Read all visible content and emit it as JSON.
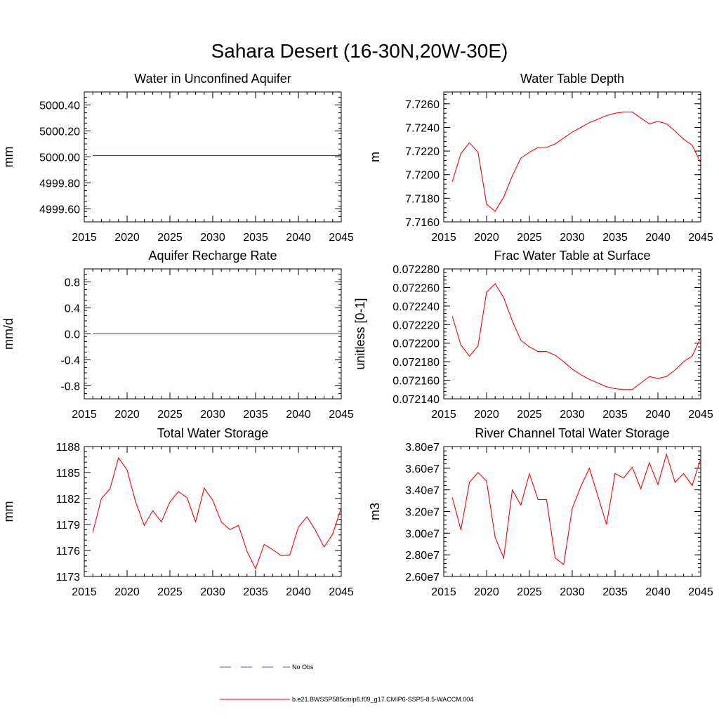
{
  "figure": {
    "title": "Sahara Desert (16-30N,20W-30E)"
  },
  "legend": [
    {
      "label": "No Obs",
      "color": "#4b5ec8",
      "style": "dashed"
    },
    {
      "label": "b.e21.BWSSP585cmip6.f09_g17.CMIP6-SSP5-8.5-WACCM.004",
      "color": "#ff0000",
      "style": "solid"
    }
  ],
  "chart_data": [
    {
      "type": "line",
      "title": "Water in Unconfined Aquifer",
      "ylabel": "mm",
      "xlim": [
        2015,
        2045
      ],
      "ylim": [
        4999.5,
        5000.5
      ],
      "xticks": [
        2015,
        2020,
        2025,
        2030,
        2035,
        2040,
        2045
      ],
      "yticks": [
        4999.6,
        4999.8,
        5000.0,
        5000.2,
        5000.4
      ],
      "ytick_labels": [
        "4999.60",
        "4999.80",
        "5000.00",
        "5000.20",
        "5000.40"
      ],
      "yminor": 0.04,
      "series": [
        {
          "color": "#ff0000",
          "x": [
            2016,
            2045
          ],
          "y": [
            5000.01,
            5000.01
          ]
        }
      ]
    },
    {
      "type": "line",
      "title": "Water Table Depth",
      "ylabel": "m",
      "xlim": [
        2015,
        2045
      ],
      "ylim": [
        7.716,
        7.727
      ],
      "xticks": [
        2015,
        2020,
        2025,
        2030,
        2035,
        2040,
        2045
      ],
      "yticks": [
        7.716,
        7.718,
        7.72,
        7.722,
        7.724,
        7.726
      ],
      "ytick_labels": [
        "7.7160",
        "7.7180",
        "7.7200",
        "7.7220",
        "7.7240",
        "7.7260"
      ],
      "yminor": 0.0004,
      "series": [
        {
          "color": "#ff0000",
          "x": [
            2016,
            2017,
            2018,
            2019,
            2020,
            2021,
            2022,
            2023,
            2024,
            2025,
            2026,
            2027,
            2028,
            2029,
            2030,
            2031,
            2032,
            2033,
            2034,
            2035,
            2036,
            2037,
            2038,
            2039,
            2040,
            2041,
            2042,
            2043,
            2044,
            2045
          ],
          "y": [
            7.7194,
            7.7218,
            7.7227,
            7.7219,
            7.7175,
            7.7169,
            7.7181,
            7.7199,
            7.7214,
            7.7219,
            7.7223,
            7.7223,
            7.7226,
            7.7231,
            7.7236,
            7.724,
            7.7244,
            7.7247,
            7.725,
            7.7252,
            7.7253,
            7.7253,
            7.7248,
            7.7243,
            7.7245,
            7.7243,
            7.7237,
            7.723,
            7.7225,
            7.721
          ]
        }
      ]
    },
    {
      "type": "line",
      "title": "Aquifer Recharge Rate",
      "ylabel": "mm/d",
      "xlim": [
        2015,
        2045
      ],
      "ylim": [
        -1.0,
        1.0
      ],
      "xticks": [
        2015,
        2020,
        2025,
        2030,
        2035,
        2040,
        2045
      ],
      "yticks": [
        -0.8,
        -0.4,
        0.0,
        0.4,
        0.8
      ],
      "ytick_labels": [
        "-0.8",
        "-0.4",
        "0.0",
        "0.4",
        "0.8"
      ],
      "yminor": 0.08,
      "series": [
        {
          "color": "#ff0000",
          "x": [
            2016,
            2045
          ],
          "y": [
            0.0,
            0.0
          ]
        }
      ]
    },
    {
      "type": "line",
      "title": "Frac Water Table at Surface",
      "ylabel": "unitless [0-1]",
      "xlim": [
        2015,
        2045
      ],
      "ylim": [
        0.07214,
        0.07228
      ],
      "xticks": [
        2015,
        2020,
        2025,
        2030,
        2035,
        2040,
        2045
      ],
      "yticks": [
        0.07214,
        0.07216,
        0.07218,
        0.0722,
        0.07222,
        0.07224,
        0.07226,
        0.07228
      ],
      "ytick_labels": [
        "0.072140",
        "0.072160",
        "0.072180",
        "0.072200",
        "0.072220",
        "0.072240",
        "0.072260",
        "0.072280"
      ],
      "yminor": 4e-06,
      "series": [
        {
          "color": "#ff0000",
          "x": [
            2016,
            2017,
            2018,
            2019,
            2020,
            2021,
            2022,
            2023,
            2024,
            2025,
            2026,
            2027,
            2028,
            2029,
            2030,
            2031,
            2032,
            2033,
            2034,
            2035,
            2036,
            2037,
            2038,
            2039,
            2040,
            2041,
            2042,
            2043,
            2044,
            2045
          ],
          "y": [
            0.072229,
            0.072198,
            0.072186,
            0.072197,
            0.072255,
            0.072264,
            0.072249,
            0.072224,
            0.072203,
            0.072196,
            0.072191,
            0.072191,
            0.072187,
            0.07218,
            0.072172,
            0.072166,
            0.072161,
            0.072157,
            0.072153,
            0.072151,
            0.07215,
            0.07215,
            0.072157,
            0.072164,
            0.072162,
            0.072164,
            0.072171,
            0.07218,
            0.072186,
            0.072206
          ]
        }
      ]
    },
    {
      "type": "line",
      "title": "Total Water Storage",
      "ylabel": "mm",
      "xlim": [
        2015,
        2045
      ],
      "ylim": [
        1173,
        1188
      ],
      "xticks": [
        2015,
        2020,
        2025,
        2030,
        2035,
        2040,
        2045
      ],
      "yticks": [
        1173,
        1176,
        1179,
        1182,
        1185,
        1188
      ],
      "ytick_labels": [
        "1173",
        "1176",
        "1179",
        "1182",
        "1185",
        "1188"
      ],
      "yminor": 0.6,
      "series": [
        {
          "color": "#ff0000",
          "x": [
            2016,
            2017,
            2018,
            2019,
            2020,
            2021,
            2022,
            2023,
            2024,
            2025,
            2026,
            2027,
            2028,
            2029,
            2030,
            2031,
            2032,
            2033,
            2034,
            2035,
            2036,
            2037,
            2038,
            2039,
            2040,
            2041,
            2042,
            2043,
            2044,
            2045
          ],
          "y": [
            1178.1,
            1182.0,
            1183.1,
            1186.7,
            1185.3,
            1181.6,
            1178.9,
            1180.6,
            1179.3,
            1181.6,
            1182.8,
            1182.1,
            1179.3,
            1183.2,
            1181.8,
            1179.3,
            1178.4,
            1178.9,
            1175.9,
            1173.9,
            1176.7,
            1176.1,
            1175.4,
            1175.5,
            1178.7,
            1179.9,
            1178.3,
            1176.4,
            1177.9,
            1180.9
          ]
        }
      ]
    },
    {
      "type": "line",
      "title": "River Channel Total Water Storage",
      "ylabel": "m3",
      "xlim": [
        2015,
        2045
      ],
      "ylim": [
        26000000,
        38000000
      ],
      "xticks": [
        2015,
        2020,
        2025,
        2030,
        2035,
        2040,
        2045
      ],
      "yticks": [
        26000000,
        28000000,
        30000000,
        32000000,
        34000000,
        36000000,
        38000000
      ],
      "ytick_labels": [
        "2.60e7",
        "2.80e7",
        "3.00e7",
        "3.20e7",
        "3.40e7",
        "3.60e7",
        "3.80e7"
      ],
      "yminor": 400000,
      "series": [
        {
          "color": "#ff0000",
          "x": [
            2016,
            2017,
            2018,
            2019,
            2020,
            2021,
            2022,
            2023,
            2024,
            2025,
            2026,
            2027,
            2028,
            2029,
            2030,
            2031,
            2032,
            2033,
            2034,
            2035,
            2036,
            2037,
            2038,
            2039,
            2040,
            2041,
            2042,
            2043,
            2044,
            2045
          ],
          "y": [
            33300000,
            30300000,
            34700000,
            35600000,
            34800000,
            29600000,
            27700000,
            34000000,
            32600000,
            35500000,
            33100000,
            33100000,
            27700000,
            27100000,
            32300000,
            34300000,
            36000000,
            33400000,
            30800000,
            35500000,
            35100000,
            36100000,
            34100000,
            36500000,
            34500000,
            37300000,
            34700000,
            35500000,
            34400000,
            36900000
          ]
        }
      ]
    }
  ]
}
